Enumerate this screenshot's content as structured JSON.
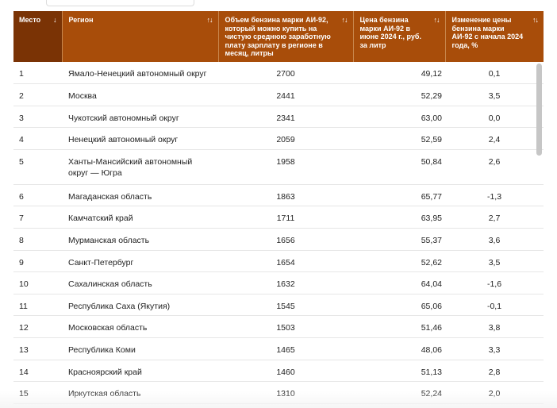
{
  "table": {
    "headers": [
      {
        "label": "Место",
        "sort": "↓"
      },
      {
        "label": "Регион",
        "sort": "↑↓"
      },
      {
        "label": "Объем бензина марки АИ-92, который можно купить на чистую среднюю заработную плату зарплату в регионе в месяц, литры",
        "sort": "↑↓"
      },
      {
        "label": "Цена бензина марки АИ-92 в июне 2024 г., руб. за литр",
        "sort": "↑↓"
      },
      {
        "label": "Изменение цены бензина марки АИ-92 с начала 2024 года, %",
        "sort": "↑↓"
      }
    ],
    "rows": [
      {
        "rank": "1",
        "region": "Ямало-Ненецкий автономный округ",
        "volume": "2700",
        "price": "49,12",
        "change": "0,1"
      },
      {
        "rank": "2",
        "region": "Москва",
        "volume": "2441",
        "price": "52,29",
        "change": "3,5"
      },
      {
        "rank": "3",
        "region": "Чукотский автономный округ",
        "volume": "2341",
        "price": "63,00",
        "change": "0,0"
      },
      {
        "rank": "4",
        "region": "Ненецкий автономный округ",
        "volume": "2059",
        "price": "52,59",
        "change": "2,4"
      },
      {
        "rank": "5",
        "region": "Ханты-Мансийский автономный округ — Югра",
        "volume": "1958",
        "price": "50,84",
        "change": "2,6"
      },
      {
        "rank": "6",
        "region": "Магаданская область",
        "volume": "1863",
        "price": "65,77",
        "change": "-1,3"
      },
      {
        "rank": "7",
        "region": "Камчатский край",
        "volume": "1711",
        "price": "63,95",
        "change": "2,7"
      },
      {
        "rank": "8",
        "region": "Мурманская область",
        "volume": "1656",
        "price": "55,37",
        "change": "3,6"
      },
      {
        "rank": "9",
        "region": "Санкт-Петербург",
        "volume": "1654",
        "price": "52,62",
        "change": "3,5"
      },
      {
        "rank": "10",
        "region": "Сахалинская область",
        "volume": "1632",
        "price": "64,04",
        "change": "-1,6"
      },
      {
        "rank": "11",
        "region": "Республика Саха (Якутия)",
        "volume": "1545",
        "price": "65,06",
        "change": "-0,1"
      },
      {
        "rank": "12",
        "region": "Московская область",
        "volume": "1503",
        "price": "51,46",
        "change": "3,8"
      },
      {
        "rank": "13",
        "region": "Республика Коми",
        "volume": "1465",
        "price": "48,06",
        "change": "3,3"
      },
      {
        "rank": "14",
        "region": "Красноярский край",
        "volume": "1460",
        "price": "51,13",
        "change": "2,8"
      },
      {
        "rank": "15",
        "region": "Иркутская область",
        "volume": "1310",
        "price": "52,24",
        "change": "2,0"
      }
    ]
  },
  "colors": {
    "header_bg": "#a84d0a",
    "header_first_bg": "#7a3305",
    "header_text": "#ffffff"
  }
}
